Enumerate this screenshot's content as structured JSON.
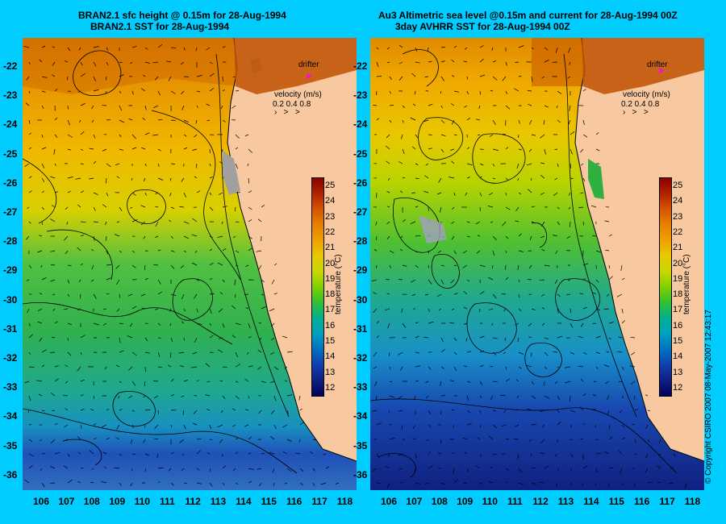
{
  "titles": {
    "left_line1": "BRAN2.1 sfc height @ 0.15m for 28-Aug-1994",
    "left_line2": "BRAN2.1 SST for 28-Aug-1994",
    "right_line1": "Au3 Altimetric sea level  @0.15m and current for 28-Aug-1994 00Z",
    "right_line2": "3day AVHRR SST for 28-Aug-1994 00Z"
  },
  "lat_labels": [
    "-22",
    "-23",
    "-24",
    "-25",
    "-26",
    "-27",
    "-28",
    "-29",
    "-30",
    "-31",
    "-32",
    "-33",
    "-34",
    "-35",
    "-36"
  ],
  "lon_labels": [
    "106",
    "107",
    "108",
    "109",
    "110",
    "111",
    "112",
    "113",
    "114",
    "115",
    "116",
    "117",
    "118"
  ],
  "legend": {
    "drifter": "drifter",
    "velocity_title": "velocity (m/s)",
    "velocity_values": "0.2 0.4 0.8",
    "drifter_color": "#ff00ff"
  },
  "colorbar": {
    "ticks": [
      "25",
      "24",
      "23",
      "22",
      "21",
      "20",
      "19",
      "18",
      "17",
      "16",
      "15",
      "14",
      "13",
      "12"
    ],
    "title": "temperature (°C)",
    "colors": [
      "#8b0000",
      "#b22200",
      "#d45500",
      "#e88000",
      "#f0a000",
      "#e8c800",
      "#c8d800",
      "#80d000",
      "#30c030",
      "#00b090",
      "#00a0c0",
      "#0070c0",
      "#1040b0",
      "#102080",
      "#000060"
    ]
  },
  "copyright": "© Copyright CSIRO 2007  08-May-2007 12:43:17",
  "map": {
    "land_color": "#f8c9a0",
    "contour_color": "#000000"
  }
}
